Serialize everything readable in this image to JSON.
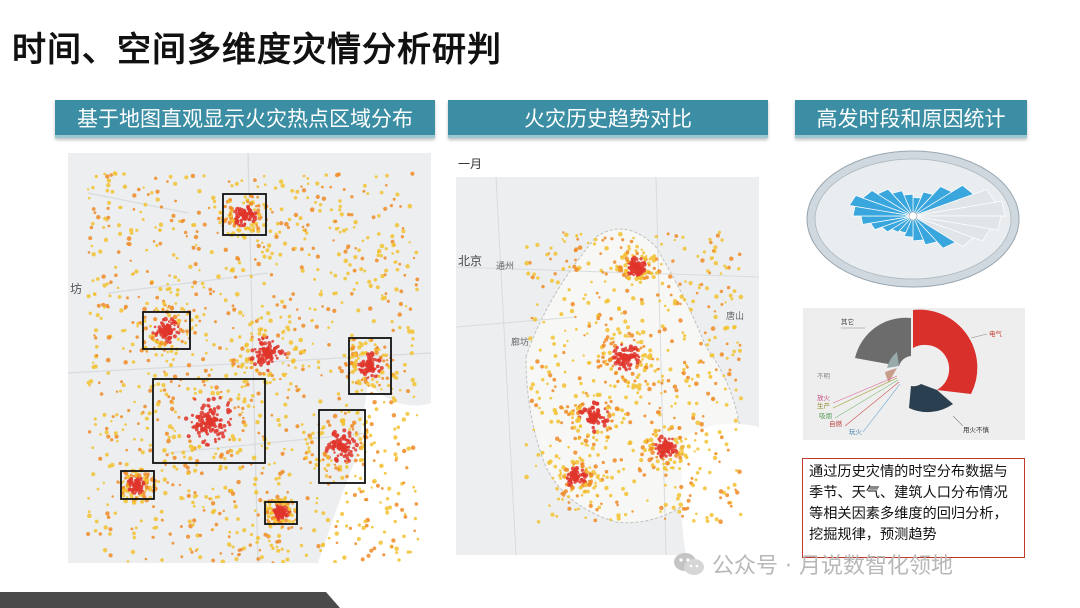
{
  "slide": {
    "title": "时间、空间多维度灾情分析研判"
  },
  "sections": {
    "map_hotspot": {
      "header": "基于地图直观显示火灾热点区域分布"
    },
    "history_trend": {
      "header": "火灾历史趋势对比",
      "month_label": "一月"
    },
    "period_cause": {
      "header": "高发时段和原因统计"
    }
  },
  "map_labels": {
    "map1_left_city": "坊",
    "map2_beijing": "北京",
    "map2_tongzhou": "通州",
    "map2_langfang": "廊坊",
    "map2_tangshan": "唐山"
  },
  "donut_chart": {
    "labels": [
      "其它",
      "电气",
      "用火不慎",
      "不明",
      "放火",
      "生产",
      "吸烟",
      "自燃",
      "玩火"
    ]
  },
  "note": {
    "text": "通过历史灾情的时空分布数据与季节、天气、建筑人口分布情况等相关因素多维度的回归分析，挖掘规律，预测趋势"
  },
  "watermark": {
    "text": "公众号 · 月说数智化领地"
  },
  "colors": {
    "header_bg": "#3b8ea4",
    "hotspot_red": "#e0352a",
    "hotspot_orange": "#f08a24",
    "hotspot_yellow": "#f2c230",
    "rose_blue": "#3aa6de",
    "donut_red": "#d9302c",
    "donut_dark": "#2a3f4f",
    "donut_grey": "#6c6c6c",
    "note_border": "#c0392b",
    "bottom_bar": "#4a4a4a"
  }
}
